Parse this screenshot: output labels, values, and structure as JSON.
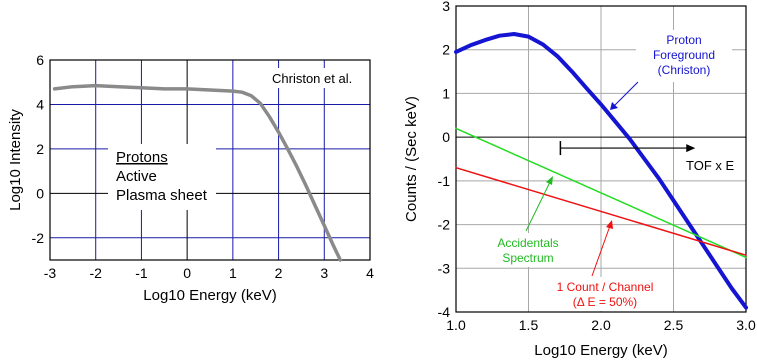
{
  "chart_data": [
    {
      "type": "line",
      "xlabel": "Log10 Energy (keV)",
      "ylabel": "Log10 Intensity",
      "xlim": [
        -3,
        4
      ],
      "ylim": [
        -3,
        6
      ],
      "x_ticks": [
        "-3",
        "-2",
        "-1",
        "0",
        "1",
        "2",
        "3",
        "4"
      ],
      "y_ticks": [
        "6",
        "4",
        "2",
        "0",
        "-2"
      ],
      "grid": true,
      "gridlines_x": [
        -2,
        -1,
        1,
        2,
        3
      ],
      "gridlines_y": [
        4,
        2,
        -2
      ],
      "zero_lines": [
        0
      ],
      "annotations": {
        "citation": "Christon et al.",
        "legend_title": "Protons",
        "legend_line1": "Active",
        "legend_line2": "Plasma sheet"
      },
      "series": [
        {
          "color": "#8a8a8a",
          "x": [
            -2.9,
            -2.5,
            -2.0,
            -1.5,
            -1.0,
            -0.5,
            0.0,
            0.5,
            1.0,
            1.2,
            1.4,
            1.6,
            1.8,
            2.0,
            2.2,
            2.4,
            2.6,
            2.8,
            3.0,
            3.2,
            3.35
          ],
          "y": [
            4.7,
            4.8,
            4.85,
            4.8,
            4.75,
            4.7,
            4.7,
            4.65,
            4.6,
            4.55,
            4.4,
            4.05,
            3.45,
            2.75,
            2.0,
            1.2,
            0.35,
            -0.55,
            -1.45,
            -2.35,
            -3.0
          ]
        }
      ]
    },
    {
      "type": "line",
      "xlabel": "Log10 Energy (keV)",
      "ylabel": "Counts / (Sec keV)",
      "xlim": [
        1.0,
        3.0
      ],
      "ylim": [
        -4,
        3
      ],
      "x_ticks": [
        "1.0",
        "1.5",
        "2.0",
        "2.5",
        "3.0"
      ],
      "y_ticks": [
        "3",
        "2",
        "1",
        "0",
        "-1",
        "-2",
        "-3",
        "-4"
      ],
      "grid": true,
      "gridlines_x": [
        1.5,
        2.0,
        2.5
      ],
      "gridlines_y": [
        2,
        1,
        -1,
        -2,
        -3
      ],
      "zero_lines": [
        0
      ],
      "annotations": {
        "tof_label": "TOF x E",
        "tof_range": [
          1.72,
          2.65
        ],
        "tof_y": -0.25,
        "proton_1": "Proton",
        "proton_2": "Foreground",
        "proton_3": "(Christon)",
        "acc_1": "Accidentals",
        "acc_2": "Spectrum",
        "one_1": "1 Count / Channel",
        "one_2": "(Δ E = 50%)"
      },
      "series": [
        {
          "color": "#1414d2",
          "x": [
            1.0,
            1.1,
            1.2,
            1.3,
            1.4,
            1.5,
            1.6,
            1.7,
            1.8,
            1.9,
            2.0,
            2.1,
            2.2,
            2.3,
            2.4,
            2.5,
            2.6,
            2.7,
            2.8,
            2.9,
            3.0
          ],
          "y": [
            1.95,
            2.1,
            2.22,
            2.32,
            2.36,
            2.3,
            2.12,
            1.85,
            1.5,
            1.12,
            0.75,
            0.35,
            -0.05,
            -0.5,
            -0.95,
            -1.45,
            -1.95,
            -2.45,
            -2.95,
            -3.45,
            -3.9
          ]
        },
        {
          "color": "#22dd22",
          "x": [
            1.0,
            3.0
          ],
          "y": [
            0.2,
            -2.75
          ]
        },
        {
          "color": "#ee1111",
          "x": [
            1.0,
            3.0
          ],
          "y": [
            -0.7,
            -2.7
          ]
        }
      ]
    }
  ]
}
